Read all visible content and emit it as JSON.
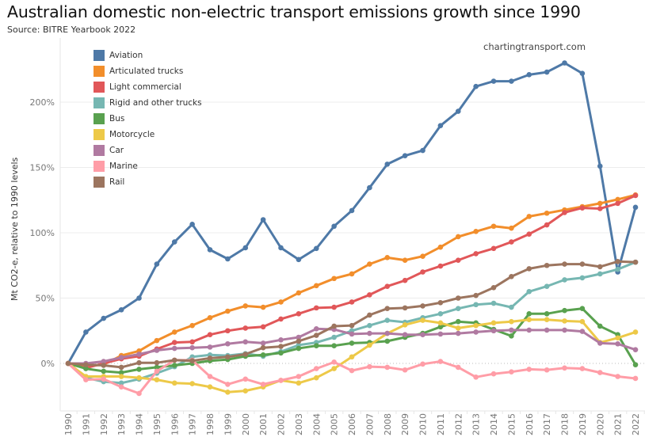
{
  "chart_data": {
    "type": "line",
    "title": "Australian domestic non-electric transport emissions growth since 1990",
    "subtitle": "Source: BITRE Yearbook 2022",
    "watermark": "chartingtransport.com",
    "xlabel": "",
    "ylabel": "Mt CO2-e, relative to 1990 levels",
    "ylim": [
      -35,
      240
    ],
    "yticks": [
      0,
      50,
      100,
      150,
      200
    ],
    "ytick_labels": [
      "0%",
      "50%",
      "100%",
      "150%",
      "200%"
    ],
    "grid": true,
    "legend_position": "top-left",
    "x": [
      "1990",
      "1991",
      "1992",
      "1993",
      "1994",
      "1995",
      "1996",
      "1997",
      "1998",
      "1999",
      "2000",
      "2001",
      "2002",
      "2003",
      "2004",
      "2005",
      "2006",
      "2007",
      "2008",
      "2009",
      "2010",
      "2011",
      "2012",
      "2013",
      "2014",
      "2015",
      "2016",
      "2017",
      "2018",
      "2019",
      "2020",
      "2021",
      "2022"
    ],
    "series": [
      {
        "name": "Aviation",
        "color": "#4e79a7",
        "values": [
          0,
          24,
          34.5,
          41,
          50,
          76,
          93,
          106.5,
          87,
          80,
          88.5,
          110,
          88.5,
          79.5,
          88,
          105,
          117,
          134.5,
          152.5,
          159,
          163,
          182,
          193,
          212,
          216,
          216,
          221,
          223,
          230,
          222,
          151,
          70,
          119.5
        ]
      },
      {
        "name": "Articulated trucks",
        "color": "#f28e2b",
        "values": [
          0,
          -2,
          -1,
          6,
          9.5,
          17.5,
          24,
          29,
          35,
          40,
          44,
          43,
          47,
          54,
          59.5,
          65,
          68.5,
          76,
          81,
          79,
          82,
          89,
          97,
          101,
          105,
          103.5,
          112.5,
          115,
          117.5,
          120,
          122.5,
          125.5,
          129
        ]
      },
      {
        "name": "Light commercial",
        "color": "#e15759",
        "values": [
          0,
          -3.5,
          0,
          3.5,
          5.5,
          11,
          16,
          16.5,
          22,
          25,
          27,
          28,
          34,
          38,
          42.5,
          43,
          47,
          52.5,
          59,
          63.5,
          70,
          74.5,
          79,
          84,
          88,
          93,
          99,
          106,
          115.5,
          119,
          118.5,
          122.5,
          128.5
        ]
      },
      {
        "name": "Rigid and other trucks",
        "color": "#76b7b2",
        "values": [
          0,
          -11,
          -14,
          -15,
          -12,
          -7.5,
          -2.5,
          5,
          6.5,
          6,
          7.5,
          5.5,
          9,
          14,
          16,
          20,
          25,
          29,
          33,
          31.5,
          35,
          38,
          42,
          45,
          46,
          43,
          55,
          59,
          64,
          65.5,
          68.5,
          72,
          77.5
        ]
      },
      {
        "name": "Bus",
        "color": "#59a14f",
        "values": [
          0,
          -4,
          -6,
          -7,
          -4.5,
          -3,
          -1.5,
          0,
          2,
          3,
          5.5,
          6.5,
          8,
          11.5,
          13.5,
          13.5,
          15.5,
          16,
          17,
          20,
          23,
          28,
          32,
          31,
          26,
          21,
          38,
          38,
          40.5,
          42,
          28.5,
          22,
          -1
        ]
      },
      {
        "name": "Motorcycle",
        "color": "#edc948",
        "values": [
          0,
          -10,
          -10,
          -10,
          -11,
          -12.5,
          -15,
          -15.5,
          -18,
          -22,
          -21,
          -18,
          -13,
          -15,
          -11,
          -4,
          5,
          14,
          23,
          29.5,
          33,
          31,
          27,
          29,
          31,
          32,
          33.5,
          33.5,
          32.5,
          32,
          16,
          19.5,
          24
        ]
      },
      {
        "name": "Car",
        "color": "#b07aa1",
        "values": [
          0,
          0,
          1.5,
          4.5,
          7,
          10,
          11.5,
          12,
          12.5,
          15,
          16.5,
          15.5,
          18,
          20,
          26.5,
          26,
          22.5,
          23,
          23,
          22,
          22,
          22.5,
          23,
          24,
          25,
          25.5,
          25.5,
          25.5,
          25.5,
          24.5,
          15.5,
          15,
          10.5
        ]
      },
      {
        "name": "Marine",
        "color": "#ff9da7",
        "values": [
          0,
          -12.5,
          -12,
          -18,
          -23,
          -6,
          2.5,
          2.5,
          -10,
          -16,
          -12,
          -16,
          -13,
          -10,
          -4,
          1,
          -5.5,
          -2.5,
          -3,
          -5,
          -0.5,
          1.5,
          -3,
          -10.5,
          -8,
          -6.5,
          -4.5,
          -5,
          -3.5,
          -4,
          -7,
          -10,
          -11.5
        ]
      },
      {
        "name": "Rail",
        "color": "#9c755f",
        "values": [
          0,
          -1,
          -1.5,
          -3,
          0.5,
          0.5,
          2.5,
          2,
          4,
          5,
          7,
          12,
          13,
          17,
          21.5,
          28.5,
          29,
          37,
          42,
          42.5,
          44,
          46.5,
          50,
          52,
          58,
          66.5,
          72.5,
          75,
          76,
          76,
          74,
          78,
          77.5
        ]
      }
    ]
  }
}
